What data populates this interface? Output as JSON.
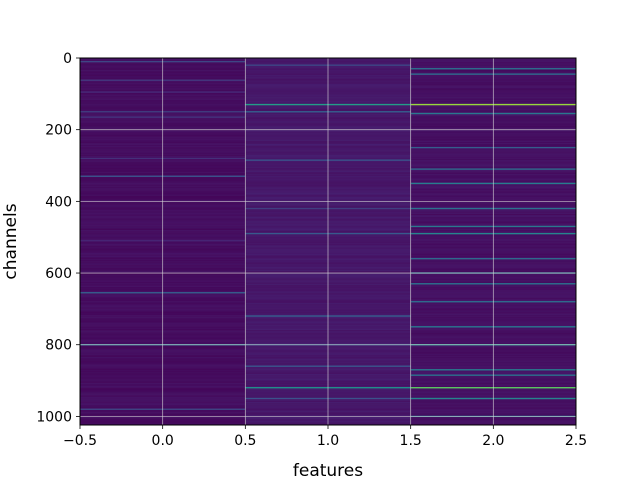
{
  "chart_data": {
    "type": "heatmap",
    "title": "",
    "xlabel": "features",
    "ylabel": "channels",
    "xlim": [
      -0.5,
      2.5
    ],
    "ylim": [
      1024,
      0
    ],
    "y_inverted": true,
    "grid": true,
    "colormap": "viridis",
    "x_ticks": [
      -0.5,
      0.0,
      0.5,
      1.0,
      1.5,
      2.0,
      2.5
    ],
    "x_tick_labels": [
      "−0.5",
      "0.0",
      "0.5",
      "1.0",
      "1.5",
      "2.0",
      "2.5"
    ],
    "y_ticks": [
      0,
      200,
      400,
      600,
      800,
      1000
    ],
    "y_tick_labels": [
      "0",
      "200",
      "400",
      "600",
      "800",
      "1000"
    ],
    "n_rows": 1024,
    "columns": [
      {
        "feature": 0,
        "base_value": 0.05,
        "bright_rows": [
          {
            "channel": 10,
            "value": 0.22
          },
          {
            "channel": 62,
            "value": 0.18
          },
          {
            "channel": 95,
            "value": 0.15
          },
          {
            "channel": 150,
            "value": 0.2
          },
          {
            "channel": 165,
            "value": 0.17
          },
          {
            "channel": 280,
            "value": 0.16
          },
          {
            "channel": 330,
            "value": 0.25
          },
          {
            "channel": 510,
            "value": 0.14
          },
          {
            "channel": 655,
            "value": 0.3
          },
          {
            "channel": 800,
            "value": 0.4
          },
          {
            "channel": 980,
            "value": 0.22
          }
        ]
      },
      {
        "feature": 1,
        "base_value": 0.09,
        "bright_rows": [
          {
            "channel": 20,
            "value": 0.22
          },
          {
            "channel": 130,
            "value": 0.55
          },
          {
            "channel": 150,
            "value": 0.3
          },
          {
            "channel": 285,
            "value": 0.26
          },
          {
            "channel": 420,
            "value": 0.2
          },
          {
            "channel": 490,
            "value": 0.28
          },
          {
            "channel": 720,
            "value": 0.3
          },
          {
            "channel": 800,
            "value": 0.28
          },
          {
            "channel": 860,
            "value": 0.26
          },
          {
            "channel": 920,
            "value": 0.5
          },
          {
            "channel": 950,
            "value": 0.25
          }
        ]
      },
      {
        "feature": 2,
        "base_value": 0.06,
        "bright_rows": [
          {
            "channel": 30,
            "value": 0.38
          },
          {
            "channel": 45,
            "value": 0.35
          },
          {
            "channel": 130,
            "value": 0.85
          },
          {
            "channel": 155,
            "value": 0.4
          },
          {
            "channel": 250,
            "value": 0.3
          },
          {
            "channel": 310,
            "value": 0.35
          },
          {
            "channel": 350,
            "value": 0.42
          },
          {
            "channel": 420,
            "value": 0.38
          },
          {
            "channel": 470,
            "value": 0.4
          },
          {
            "channel": 490,
            "value": 0.45
          },
          {
            "channel": 560,
            "value": 0.35
          },
          {
            "channel": 600,
            "value": 0.42
          },
          {
            "channel": 630,
            "value": 0.38
          },
          {
            "channel": 680,
            "value": 0.35
          },
          {
            "channel": 750,
            "value": 0.4
          },
          {
            "channel": 800,
            "value": 0.5
          },
          {
            "channel": 870,
            "value": 0.42
          },
          {
            "channel": 885,
            "value": 0.38
          },
          {
            "channel": 920,
            "value": 0.75
          },
          {
            "channel": 950,
            "value": 0.45
          },
          {
            "channel": 1000,
            "value": 0.38
          }
        ]
      }
    ]
  }
}
